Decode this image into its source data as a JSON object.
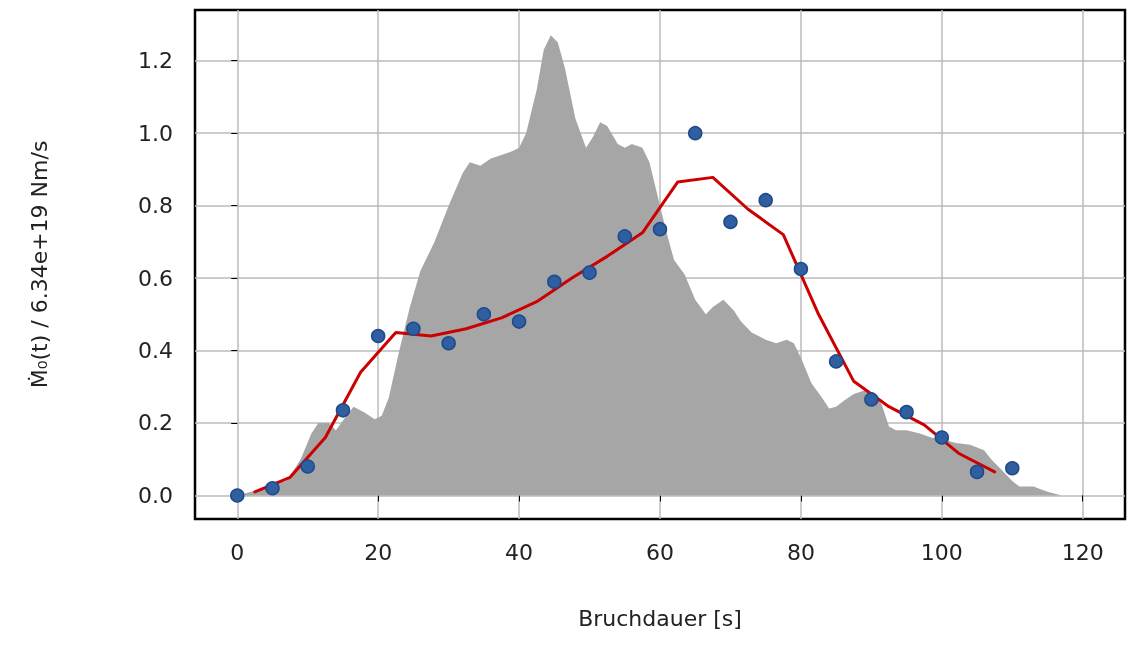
{
  "chart_data": {
    "type": "line",
    "xlabel": "Bruchdauer [s]",
    "ylabel": "Ṁ₀(t) / 6.34e+19 Nm/s",
    "xlim": [
      -6,
      126
    ],
    "ylim": [
      -0.065,
      1.34
    ],
    "xticks": [
      0,
      20,
      40,
      60,
      80,
      100,
      120
    ],
    "yticks": [
      {
        "value": 0,
        "label": "0.0"
      },
      {
        "value": 0.2,
        "label": "0.2"
      },
      {
        "value": 0.4,
        "label": "0.4"
      },
      {
        "value": 0.6,
        "label": "0.6"
      },
      {
        "value": 0.8,
        "label": "0.8"
      },
      {
        "value": 1,
        "label": "1.0"
      },
      {
        "value": 1.2,
        "label": "1.2"
      }
    ],
    "grid": true,
    "series": [
      {
        "type": "area",
        "color": "#a6a6a6",
        "marker": "none",
        "x": [
          0,
          2,
          5,
          7,
          9,
          10.5,
          11.5,
          13,
          14,
          15.5,
          16.5,
          18,
          19.5,
          20.5,
          21.5,
          23,
          24.5,
          26,
          28,
          30,
          32,
          33,
          34.5,
          36,
          37.5,
          39,
          40,
          41,
          42.5,
          43.5,
          44.5,
          45.5,
          46.5,
          48,
          49.5,
          50.5,
          51.5,
          52.5,
          54,
          55,
          56,
          57.5,
          58.5,
          60,
          61,
          62,
          63.5,
          65,
          66.5,
          67.5,
          69,
          70.5,
          71.5,
          73,
          75,
          76.5,
          78,
          79,
          80,
          81.5,
          83,
          84,
          85,
          86,
          87.5,
          89,
          90.5,
          91.5,
          92.5,
          93.5,
          95,
          97,
          98.5,
          100,
          102,
          104,
          106,
          107,
          108.5,
          110,
          111,
          113,
          115,
          117
        ],
        "values": [
          0,
          0.01,
          0.03,
          0.04,
          0.1,
          0.17,
          0.2,
          0.2,
          0.18,
          0.22,
          0.245,
          0.23,
          0.21,
          0.22,
          0.27,
          0.4,
          0.52,
          0.62,
          0.7,
          0.8,
          0.89,
          0.92,
          0.91,
          0.93,
          0.94,
          0.95,
          0.96,
          1.0,
          1.12,
          1.23,
          1.27,
          1.25,
          1.18,
          1.04,
          0.96,
          0.99,
          1.03,
          1.02,
          0.97,
          0.96,
          0.97,
          0.96,
          0.92,
          0.8,
          0.72,
          0.65,
          0.61,
          0.54,
          0.5,
          0.52,
          0.54,
          0.51,
          0.48,
          0.45,
          0.43,
          0.42,
          0.43,
          0.42,
          0.38,
          0.31,
          0.27,
          0.24,
          0.245,
          0.26,
          0.28,
          0.29,
          0.28,
          0.25,
          0.19,
          0.18,
          0.18,
          0.17,
          0.16,
          0.155,
          0.145,
          0.14,
          0.125,
          0.1,
          0.07,
          0.04,
          0.025,
          0.025,
          0.01,
          0
        ]
      },
      {
        "color": "#cc0000",
        "marker": "none",
        "line_style": "solid",
        "x": [
          2.5,
          7.5,
          12.5,
          17.5,
          22.5,
          27.5,
          32.5,
          37.5,
          42.5,
          47.5,
          52.5,
          57.5,
          62.5,
          67.5,
          72.5,
          77.5,
          82.5,
          87.5,
          92.5,
          97.5,
          102.5,
          107.5
        ],
        "values": [
          0.01,
          0.05,
          0.16,
          0.34,
          0.45,
          0.44,
          0.46,
          0.49,
          0.535,
          0.6,
          0.66,
          0.725,
          0.865,
          0.878,
          0.79,
          0.72,
          0.5,
          0.315,
          0.245,
          0.195,
          0.115,
          0.065
        ]
      },
      {
        "type": "scatter",
        "color": "#2f5fa0",
        "marker": "circle",
        "x": [
          0,
          5,
          10,
          15,
          20,
          25,
          30,
          35,
          40,
          45,
          50,
          55,
          60,
          65,
          70,
          75,
          80,
          85,
          90,
          95,
          100,
          105,
          110
        ],
        "values": [
          0,
          0.02,
          0.08,
          0.235,
          0.44,
          0.46,
          0.42,
          0.5,
          0.48,
          0.59,
          0.615,
          0.715,
          0.735,
          1.0,
          0.755,
          0.815,
          0.625,
          0.37,
          0.265,
          0.23,
          0.16,
          0.065,
          0.075
        ]
      }
    ]
  }
}
